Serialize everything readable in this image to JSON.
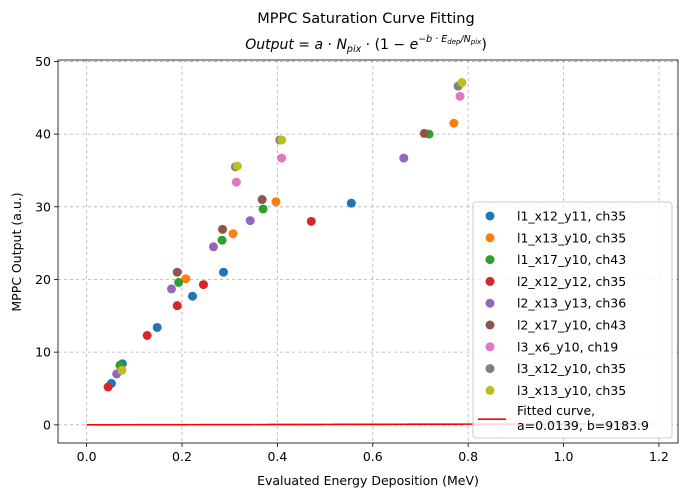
{
  "chart_data": {
    "type": "scatter",
    "title": "MPPC Saturation Curve Fitting",
    "subtitle": "Output = a · N_pix · (1 − e^(−b · E_dep / N_pix))",
    "xlabel": "Evaluated Energy Deposition (MeV)",
    "ylabel": "MPPC Output (a.u.)",
    "xlim": [
      -0.06,
      1.24
    ],
    "ylim": [
      -2.5,
      50.2
    ],
    "xticks": [
      0.0,
      0.2,
      0.4,
      0.6,
      0.8,
      1.0,
      1.2
    ],
    "yticks": [
      0,
      10,
      20,
      30,
      40,
      50
    ],
    "xtick_labels": [
      "0.0",
      "0.2",
      "0.4",
      "0.6",
      "0.8",
      "1.0",
      "1.2"
    ],
    "ytick_labels": [
      "0",
      "10",
      "20",
      "30",
      "40",
      "50"
    ],
    "grid": true,
    "legend_position": "lower-right",
    "series": [
      {
        "name": "l1_x12_y11, ch35",
        "color": "#1f77b4",
        "x": [
          0.052,
          0.075,
          0.148,
          0.222,
          0.287,
          0.555
        ],
        "y": [
          5.7,
          8.4,
          13.4,
          17.7,
          21.0,
          30.5
        ]
      },
      {
        "name": "l1_x13_y10, ch35",
        "color": "#ff7f0e",
        "x": [
          0.072,
          0.208,
          0.307,
          0.397,
          0.77
        ],
        "y": [
          7.9,
          20.1,
          26.3,
          30.7,
          41.5
        ]
      },
      {
        "name": "l1_x17_y10, ch43",
        "color": "#2ca02c",
        "x": [
          0.07,
          0.193,
          0.284,
          0.37,
          0.718
        ],
        "y": [
          8.2,
          19.6,
          25.4,
          29.7,
          40.0
        ]
      },
      {
        "name": "l2_x12_y12, ch35",
        "color": "#d62728",
        "x": [
          0.045,
          0.127,
          0.19,
          0.245,
          0.471
        ],
        "y": [
          5.2,
          12.3,
          16.4,
          19.3,
          28.0
        ]
      },
      {
        "name": "l2_x13_y13, ch36",
        "color": "#9467bd",
        "x": [
          0.063,
          0.178,
          0.266,
          0.343,
          0.665
        ],
        "y": [
          7.0,
          18.7,
          24.5,
          28.1,
          36.7
        ]
      },
      {
        "name": "l2_x17_y10, ch43",
        "color": "#8c564b",
        "x": [
          0.19,
          0.285,
          0.368,
          0.708
        ],
        "y": [
          21.0,
          26.9,
          31.0,
          40.1
        ]
      },
      {
        "name": "l3_x6_y10, ch19",
        "color": "#e377c2",
        "x": [
          0.314,
          0.409,
          0.783
        ],
        "y": [
          33.4,
          36.7,
          45.2
        ]
      },
      {
        "name": "l3_x12_y10, ch35",
        "color": "#7f7f7f",
        "x": [
          0.312,
          0.405,
          0.779
        ],
        "y": [
          35.5,
          39.2,
          46.6
        ]
      },
      {
        "name": "l3_x13_y10, ch35",
        "color": "#bcbd22",
        "x": [
          0.074,
          0.316,
          0.409,
          0.787
        ],
        "y": [
          7.5,
          35.6,
          39.2,
          47.1
        ]
      }
    ],
    "fit": {
      "name": "Fitted curve,\na=0.0139, b=9183.9",
      "name_lines": [
        "Fitted curve,",
        "a=0.0139, b=9183.9"
      ],
      "color": "#ff0000",
      "a": 0.0139,
      "b": 9183.9,
      "x_range": [
        0.0,
        1.18
      ]
    }
  }
}
